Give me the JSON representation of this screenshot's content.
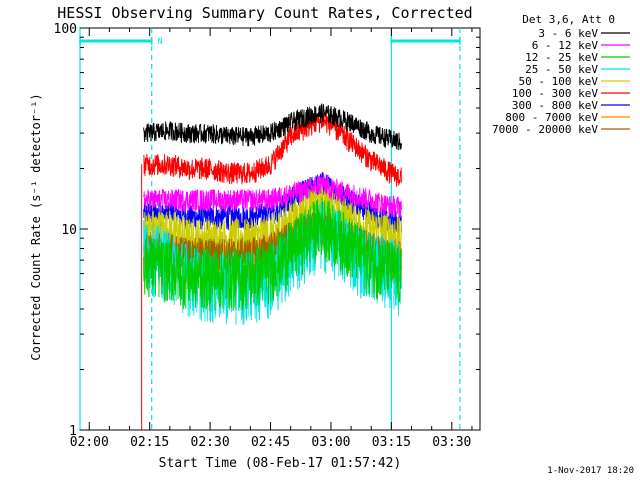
{
  "chart_data": {
    "type": "line",
    "title": "HESSI Observing Summary Count Rates, Corrected",
    "xlabel": "Start Time (08-Feb-17 01:57:42)",
    "ylabel": "Corrected Count Rate (s⁻¹ detector⁻¹)",
    "y_scale": "log",
    "ylim": [
      1,
      100
    ],
    "xlim": [
      "01:57:42",
      "03:37:00"
    ],
    "x_ticks": [
      "02:00",
      "02:15",
      "02:30",
      "02:45",
      "03:00",
      "03:15",
      "03:30"
    ],
    "y_ticks": [
      "1",
      "10",
      "100"
    ],
    "legend_title": "Det 3,6, Att 0",
    "legend_position": "outside-right",
    "data_start": "02:13:30",
    "data_end": "03:17:30",
    "series": [
      {
        "name": "3 - 6 keV",
        "color": "#000000",
        "x": [
          "02:13:30",
          "02:20",
          "02:25",
          "02:30",
          "02:35",
          "02:40",
          "02:45",
          "02:50",
          "02:55",
          "02:58",
          "03:00",
          "03:05",
          "03:10",
          "03:15",
          "03:17:30"
        ],
        "values": [
          30,
          31,
          30,
          30,
          29,
          29,
          30,
          34,
          37,
          38,
          37,
          34,
          30,
          28,
          27
        ]
      },
      {
        "name": "6 - 12 keV",
        "color": "#ff00ff",
        "x": [
          "02:13:30",
          "02:20",
          "02:25",
          "02:30",
          "02:35",
          "02:40",
          "02:45",
          "02:50",
          "02:55",
          "02:58",
          "03:00",
          "03:05",
          "03:10",
          "03:15",
          "03:17:30"
        ],
        "values": [
          14,
          14,
          14,
          14,
          14,
          14,
          14,
          15,
          16,
          17,
          16,
          15,
          14,
          13,
          13
        ]
      },
      {
        "name": "12 - 25 keV",
        "color": "#00cc00",
        "x": [
          "02:13:30",
          "02:20",
          "02:25",
          "02:30",
          "02:35",
          "02:40",
          "02:45",
          "02:50",
          "02:55",
          "02:58",
          "03:00",
          "03:05",
          "03:10",
          "03:15",
          "03:17:30"
        ],
        "values": [
          7,
          6.5,
          6,
          6,
          6,
          6,
          6.5,
          8,
          10,
          11,
          10,
          8.5,
          7,
          6.5,
          6
        ]
      },
      {
        "name": "25 - 50 keV",
        "color": "#00e5e5",
        "x": [
          "02:13:30",
          "02:20",
          "02:25",
          "02:30",
          "02:35",
          "02:40",
          "02:45",
          "02:50",
          "02:55",
          "02:58",
          "03:00",
          "03:05",
          "03:10",
          "03:15",
          "03:17:30"
        ],
        "values": [
          8,
          7,
          6,
          5.5,
          5.5,
          5.5,
          6,
          7.5,
          9,
          10,
          9.5,
          8,
          7,
          6.5,
          6
        ]
      },
      {
        "name": "50 - 100 keV",
        "color": "#cccc00",
        "x": [
          "02:13:30",
          "02:20",
          "02:25",
          "02:30",
          "02:35",
          "02:40",
          "02:45",
          "02:50",
          "02:55",
          "02:58",
          "03:00",
          "03:05",
          "03:10",
          "03:15",
          "03:17:30"
        ],
        "values": [
          10,
          10,
          9,
          9,
          9,
          9,
          9.5,
          11,
          13,
          14,
          13,
          11,
          10,
          9.5,
          9
        ]
      },
      {
        "name": "100 - 300 keV",
        "color": "#ff0000",
        "x": [
          "02:13:30",
          "02:20",
          "02:25",
          "02:30",
          "02:35",
          "02:40",
          "02:45",
          "02:50",
          "02:55",
          "02:58",
          "03:00",
          "03:05",
          "03:10",
          "03:15",
          "03:17:30"
        ],
        "values": [
          21,
          21,
          20,
          20,
          19,
          19,
          21,
          29,
          33,
          35,
          33,
          27,
          22,
          19,
          18
        ]
      },
      {
        "name": "300 - 800 keV",
        "color": "#0000ff",
        "x": [
          "02:13:30",
          "02:20",
          "02:25",
          "02:30",
          "02:35",
          "02:40",
          "02:45",
          "02:50",
          "02:55",
          "02:58",
          "03:00",
          "03:05",
          "03:10",
          "03:15",
          "03:17:30"
        ],
        "values": [
          12,
          12,
          11.5,
          11.5,
          11.5,
          11.5,
          12,
          14,
          16,
          17,
          16,
          14,
          12,
          11,
          11
        ]
      },
      {
        "name": "800 - 7000 keV",
        "color": "#ff8800",
        "x": [
          "02:13:30",
          "02:20",
          "02:25",
          "02:30",
          "02:35",
          "02:40",
          "02:45",
          "02:50",
          "02:55",
          "02:58",
          "03:00",
          "03:05",
          "03:10",
          "03:15",
          "03:17:30"
        ],
        "values": [
          7.5,
          7.5,
          7,
          7,
          7,
          7,
          7.5,
          8.5,
          9.5,
          10,
          9.5,
          8.5,
          7.5,
          7,
          7
        ]
      },
      {
        "name": "7000 - 20000 keV",
        "color": "#996600",
        "x": [
          "02:13:30",
          "02:20",
          "02:25",
          "02:30",
          "02:35",
          "02:40",
          "02:45",
          "02:50",
          "02:55",
          "02:58",
          "03:00",
          "03:05",
          "03:10",
          "03:15",
          "03:17:30"
        ],
        "values": [
          8,
          8,
          7.5,
          7.5,
          7.5,
          7.5,
          8,
          9,
          10,
          10.5,
          10,
          9,
          8,
          7.5,
          7.5
        ]
      }
    ],
    "flags": {
      "color": "#00e5e5",
      "solid_markers": [
        "01:57:42",
        "03:15:00"
      ],
      "dashed_markers": [
        "02:15:30",
        "03:32:00"
      ],
      "bars": [
        {
          "start": "01:57:42",
          "end": "02:15:30",
          "label": "N"
        },
        {
          "start": "03:15:00",
          "end": "03:32:00",
          "label": ""
        }
      ]
    },
    "footer_stamp": "1-Nov-2017 18:20"
  }
}
